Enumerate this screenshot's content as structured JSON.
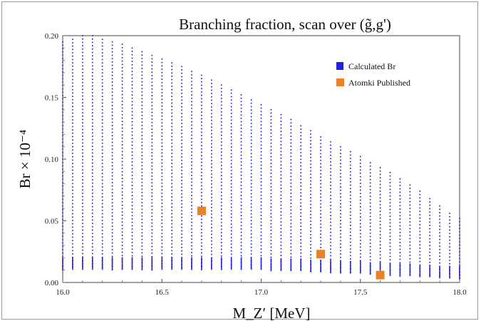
{
  "chart_data": {
    "type": "scatter",
    "title": "Branching fraction, scan over (g̃,g')",
    "xlabel": "M_Z′ [MeV]",
    "ylabel": "Br × 10⁻⁴",
    "xlim": [
      16.0,
      18.0
    ],
    "ylim": [
      0.0,
      0.2
    ],
    "x_ticks": [
      "16.0",
      "16.5",
      "17.0",
      "17.5",
      "18.0"
    ],
    "y_ticks": [
      "0.00",
      "0.05",
      "0.10",
      "0.15",
      "0.20"
    ],
    "grid": false,
    "legend": {
      "position": "top-right"
    },
    "series": [
      {
        "name": "Calculated Br",
        "color": "#1f1fe0",
        "marker": "dot",
        "columns": {
          "x_start": 16.0,
          "x_end": 18.0,
          "x_step": 0.05,
          "y_max": [
            0.195,
            0.197,
            0.2,
            0.2,
            0.197,
            0.195,
            0.193,
            0.19,
            0.187,
            0.184,
            0.181,
            0.178,
            0.175,
            0.171,
            0.168,
            0.164,
            0.16,
            0.156,
            0.152,
            0.148,
            0.144,
            0.14,
            0.136,
            0.132,
            0.127,
            0.123,
            0.118,
            0.114,
            0.11,
            0.106,
            0.102,
            0.097,
            0.093,
            0.089,
            0.084,
            0.079,
            0.074,
            0.068,
            0.062,
            0.056,
            0.052
          ],
          "y_min": [
            0.01,
            0.01,
            0.01,
            0.01,
            0.01,
            0.01,
            0.01,
            0.01,
            0.01,
            0.01,
            0.01,
            0.01,
            0.01,
            0.01,
            0.01,
            0.01,
            0.01,
            0.01,
            0.01,
            0.01,
            0.01,
            0.009,
            0.009,
            0.009,
            0.009,
            0.008,
            0.008,
            0.008,
            0.007,
            0.007,
            0.007,
            0.006,
            0.006,
            0.005,
            0.005,
            0.005,
            0.004,
            0.004,
            0.003,
            0.003,
            0.003
          ]
        }
      },
      {
        "name": "Atomki Published",
        "color": "#e8822a",
        "marker": "square",
        "points": [
          {
            "x": 16.7,
            "y": 0.058,
            "yerr": 0.003
          },
          {
            "x": 17.3,
            "y": 0.023,
            "yerr": 0.002
          },
          {
            "x": 17.6,
            "y": 0.006,
            "yerr": 0.001
          }
        ]
      }
    ]
  }
}
